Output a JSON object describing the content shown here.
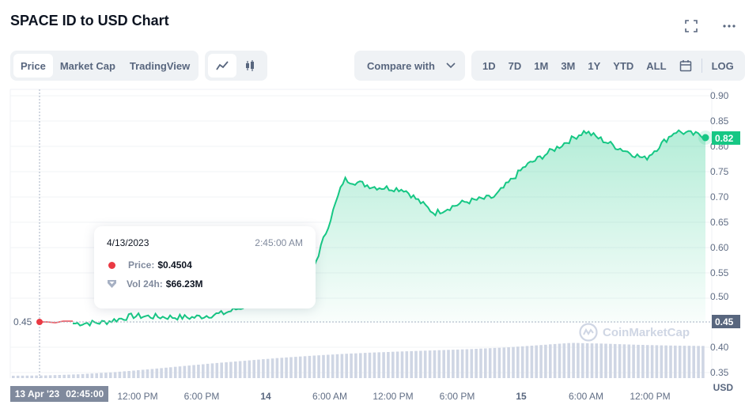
{
  "header": {
    "title": "SPACE ID to USD Chart",
    "fullscreen_icon": "fullscreen-icon",
    "more_icon": "more-horizontal-icon"
  },
  "view_tabs": [
    {
      "label": "Price",
      "active": true
    },
    {
      "label": "Market Cap",
      "active": false
    },
    {
      "label": "TradingView",
      "active": false
    }
  ],
  "chart_type_toggle": [
    {
      "icon": "line-chart-icon",
      "active": true
    },
    {
      "icon": "candlestick-icon",
      "active": false
    }
  ],
  "compare": {
    "label": "Compare with",
    "icon": "chevron-down-icon"
  },
  "ranges": [
    "1D",
    "7D",
    "1M",
    "3M",
    "1Y",
    "YTD",
    "ALL"
  ],
  "calendar_icon": "calendar-icon",
  "log_label": "LOG",
  "axis": {
    "y_ticks": [
      "0.90",
      "0.85",
      "0.80",
      "0.75",
      "0.70",
      "0.65",
      "0.60",
      "0.55",
      "0.50",
      "0.45",
      "0.40",
      "0.35"
    ],
    "y_unit": "USD",
    "x_ticks": [
      {
        "label": "12:00 PM",
        "bold": false
      },
      {
        "label": "6:00 PM",
        "bold": false
      },
      {
        "label": "14",
        "bold": true
      },
      {
        "label": "6:00 AM",
        "bold": false
      },
      {
        "label": "12:00 PM",
        "bold": false
      },
      {
        "label": "6:00 PM",
        "bold": false
      },
      {
        "label": "15",
        "bold": true
      },
      {
        "label": "6:00 AM",
        "bold": false
      },
      {
        "label": "12:00 PM",
        "bold": false
      }
    ]
  },
  "current_price_tag": {
    "value": "0.82",
    "color": "#16c784"
  },
  "hover_price_tag": {
    "value": "0.45",
    "color": "#58667e"
  },
  "left_price_label": "0.45",
  "crosshair_date": {
    "date": "13 Apr '23",
    "time": "02:45:00"
  },
  "tooltip": {
    "date": "4/13/2023",
    "time": "2:45:00 AM",
    "price_label": "Price:",
    "price_value": "$0.4504",
    "vol_label": "Vol 24h:",
    "vol_value": "$66.23M"
  },
  "watermark": "CoinMarketCap",
  "colors": {
    "up": "#16c784",
    "down": "#ea3943",
    "volume": "#cfd6e4",
    "accent_text": "#58667e"
  },
  "chart_data": {
    "type": "line",
    "title": "SPACE ID to USD Chart",
    "xlabel": "",
    "ylabel": "USD",
    "ylim": [
      0.33,
      0.92
    ],
    "grid": true,
    "x": [
      "13 Apr 02:45",
      "13 Apr 06:00",
      "13 Apr 09:00",
      "13 Apr 12:00",
      "13 Apr 15:00",
      "13 Apr 18:00",
      "13 Apr 21:00",
      "14 Apr 00:00",
      "14 Apr 03:00",
      "14 Apr 06:00",
      "14 Apr 09:00",
      "14 Apr 12:00",
      "14 Apr 15:00",
      "14 Apr 18:00",
      "14 Apr 21:00",
      "15 Apr 00:00",
      "15 Apr 03:00",
      "15 Apr 06:00",
      "15 Apr 09:00",
      "15 Apr 12:00",
      "15 Apr 15:00",
      "15 Apr 18:00"
    ],
    "series": [
      {
        "name": "Price",
        "values": [
          0.45,
          0.452,
          0.465,
          0.463,
          0.462,
          0.47,
          0.49,
          0.525,
          0.56,
          0.735,
          0.72,
          0.715,
          0.668,
          0.69,
          0.7,
          0.76,
          0.795,
          0.83,
          0.8,
          0.775,
          0.83,
          0.82
        ]
      },
      {
        "name": "Vol 24h",
        "values": [
          66.23,
          67,
          70,
          75,
          82,
          90,
          98,
          105,
          112,
          118,
          123,
          127,
          130,
          133,
          136,
          140,
          146,
          152,
          150,
          147,
          145,
          144
        ]
      }
    ],
    "annotations": [
      "Hover: 4/13/2023 2:45:00 AM Price $0.4504 Vol 24h $66.23M",
      "Last price 0.82"
    ]
  }
}
